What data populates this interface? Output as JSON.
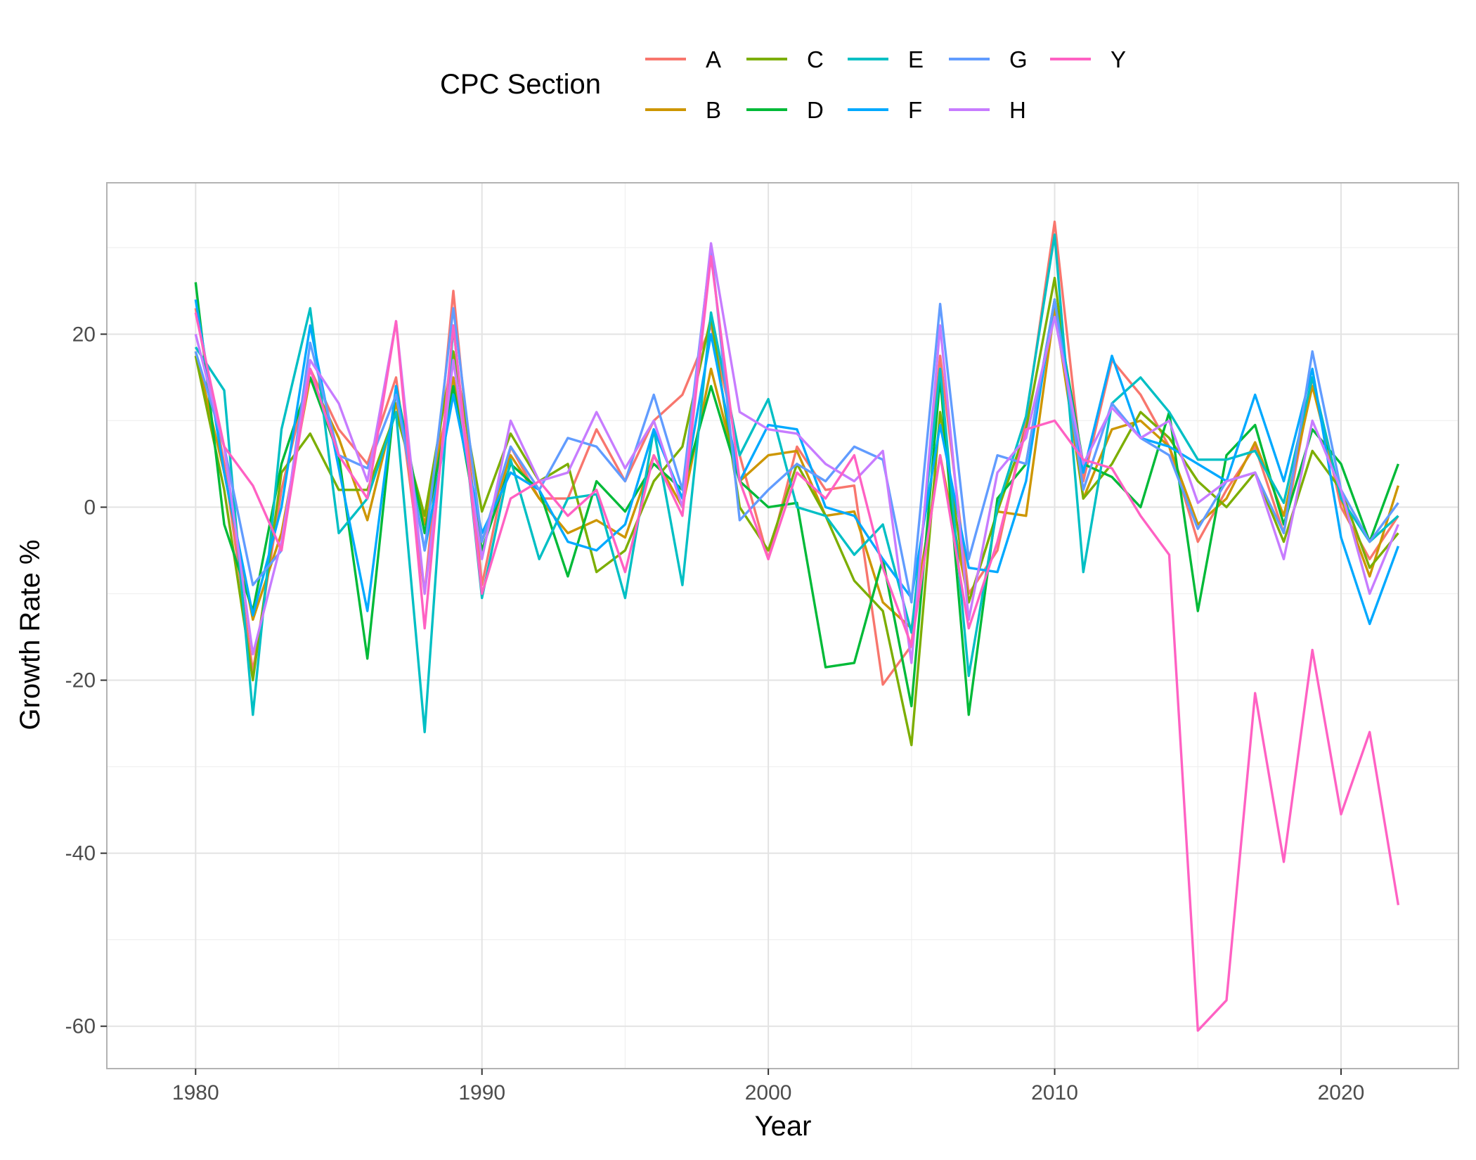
{
  "chart_data": {
    "type": "line",
    "title": "",
    "xlabel": "Year",
    "ylabel": "Growth Rate %",
    "xlim": [
      1976.9,
      2024.1
    ],
    "ylim": [
      -64.9,
      37.5
    ],
    "x_ticks": [
      1980,
      1990,
      2000,
      2010,
      2020
    ],
    "y_ticks": [
      20,
      0,
      -20,
      -40,
      -60
    ],
    "grid": true,
    "legend": {
      "title": "CPC Section",
      "position": "top"
    },
    "x": [
      1980,
      1981,
      1982,
      1983,
      1984,
      1985,
      1986,
      1987,
      1988,
      1989,
      1990,
      1991,
      1992,
      1993,
      1994,
      1995,
      1996,
      1997,
      1998,
      1999,
      2000,
      2001,
      2002,
      2003,
      2004,
      2005,
      2006,
      2007,
      2008,
      2009,
      2010,
      2011,
      2012,
      2013,
      2014,
      2015,
      2016,
      2017,
      2018,
      2019,
      2020,
      2021,
      2022
    ],
    "series": [
      {
        "name": "A",
        "color": "#F8766D",
        "values": [
          23,
          5,
          -19,
          2,
          16,
          9,
          5,
          15,
          -10,
          25,
          -9,
          7,
          1,
          1,
          9,
          3,
          10,
          13,
          21,
          6,
          -6,
          7,
          2,
          2.5,
          -20.5,
          -16,
          17.5,
          -10,
          -5,
          10,
          33,
          3,
          17,
          13,
          7,
          -4,
          2,
          7,
          -3,
          15,
          0,
          -6,
          -1
        ]
      },
      {
        "name": "B",
        "color": "#CD9600",
        "values": [
          18,
          4,
          -13,
          -3,
          15,
          8,
          -1.5,
          12,
          -2,
          15,
          -4,
          6,
          1,
          -3,
          -1.5,
          -3.5,
          6,
          0,
          16,
          3,
          6,
          6.5,
          -1,
          -0.5,
          -11,
          -14,
          6,
          -11,
          -0.5,
          -1,
          23,
          1,
          9,
          10,
          7,
          -2,
          1,
          7.5,
          -1,
          14,
          1,
          -8,
          2.5
        ]
      },
      {
        "name": "C",
        "color": "#7CAE00",
        "values": [
          17.5,
          2,
          -20,
          4,
          8.5,
          2,
          2,
          11,
          -1,
          18,
          -0.5,
          8.5,
          3,
          5,
          -7.5,
          -5,
          3,
          7,
          22,
          0,
          -5,
          5,
          -1,
          -8.5,
          -12,
          -27.5,
          11,
          -11,
          -0.5,
          9,
          26.5,
          1,
          5,
          11,
          8,
          3,
          0,
          4,
          -4,
          6.5,
          2,
          -7,
          -3
        ]
      },
      {
        "name": "D",
        "color": "#00BA38",
        "values": [
          26,
          -2,
          -12,
          5,
          15,
          6,
          -17.5,
          14,
          -3,
          14,
          -5,
          5,
          2,
          -8,
          3,
          -0.5,
          5,
          2,
          14,
          3,
          0,
          0.5,
          -18.5,
          -18,
          -6,
          -23,
          15,
          -24,
          1,
          5,
          24,
          5,
          3.5,
          0,
          11,
          -12,
          6,
          9.5,
          -2,
          9,
          5,
          -4,
          5
        ]
      },
      {
        "name": "E",
        "color": "#00BFC4",
        "values": [
          18.5,
          13.5,
          -24,
          9,
          23,
          -3,
          1,
          11,
          -26,
          21,
          -10.5,
          5.5,
          -6,
          1,
          1.5,
          -10.5,
          9,
          -9,
          22.5,
          6,
          12.5,
          0,
          -1,
          -5.5,
          -2,
          -14.5,
          16,
          -19.5,
          0,
          10.5,
          31.5,
          -7.5,
          12,
          15,
          11,
          5.5,
          5.5,
          6.5,
          0.5,
          15,
          1,
          -4,
          -1
        ]
      },
      {
        "name": "F",
        "color": "#00A9FF",
        "values": [
          24,
          4,
          -12.5,
          0,
          21,
          4.5,
          -12,
          14,
          -5,
          13,
          -3,
          4,
          2,
          -4,
          -5,
          -2,
          9,
          1,
          20,
          3,
          9.5,
          9,
          0,
          -1,
          -6,
          -10.5,
          9.5,
          -7,
          -7.5,
          3,
          24,
          4,
          17.5,
          8,
          7,
          5,
          3,
          13,
          3,
          16,
          -3.5,
          -13.5,
          -4.5
        ]
      },
      {
        "name": "G",
        "color": "#619CFF",
        "values": [
          18,
          7,
          -9,
          -5,
          19,
          6,
          4.5,
          13,
          -5,
          23,
          -4,
          7,
          2,
          8,
          7,
          3,
          13,
          2,
          30,
          -1.5,
          2,
          5,
          3,
          7,
          5.5,
          -11,
          23.5,
          -6,
          6,
          5,
          24,
          2,
          12,
          8,
          6,
          -2.5,
          3,
          4,
          -3,
          18,
          2,
          -4,
          0.5
        ]
      },
      {
        "name": "H",
        "color": "#C77CFF",
        "values": [
          20,
          7,
          -17,
          -4,
          17,
          12,
          3,
          21.5,
          -10,
          17,
          -6,
          10,
          3,
          4,
          11,
          4.5,
          10,
          0,
          30.5,
          11,
          9,
          8.5,
          5,
          3,
          6.5,
          -18,
          21,
          -13,
          4,
          8,
          22,
          5,
          11.5,
          8,
          10,
          0.5,
          3,
          4,
          -6,
          10,
          2,
          -10,
          -2
        ]
      },
      {
        "name": "Y",
        "color": "#FF61C3",
        "values": [
          22.5,
          7,
          2.5,
          -5,
          16,
          6,
          1,
          21.5,
          -14,
          21,
          -10,
          1,
          3,
          -1,
          2,
          -7.5,
          6,
          -1,
          29,
          3,
          -6,
          4,
          1,
          6,
          -7,
          -16,
          6,
          -14,
          -4,
          9,
          10,
          5.5,
          4.5,
          -1,
          -5.5,
          -60.5,
          -57,
          -21.5,
          -41,
          -16.5,
          -35.5,
          -26,
          -46
        ]
      }
    ]
  }
}
